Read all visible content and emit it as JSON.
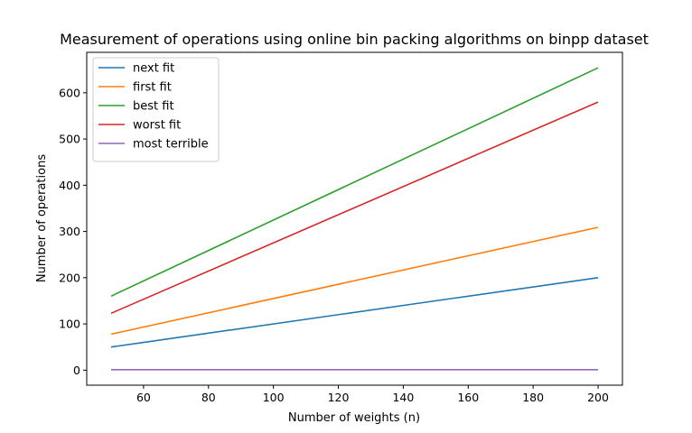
{
  "chart_data": {
    "type": "line",
    "title": "Measurement of operations using online bin packing algorithms on binpp dataset",
    "xlabel": "Number of weights (n)",
    "ylabel": "Number of operations",
    "xlim": [
      42.5,
      207.5
    ],
    "ylim": [
      -32.5,
      687.5
    ],
    "xticks": [
      60,
      80,
      100,
      120,
      140,
      160,
      180,
      200
    ],
    "yticks": [
      0,
      100,
      200,
      300,
      400,
      500,
      600
    ],
    "x": [
      50,
      200
    ],
    "series": [
      {
        "name": "next fit",
        "color": "#1f77b4",
        "values": [
          50,
          200
        ]
      },
      {
        "name": "first fit",
        "color": "#ff7f0e",
        "values": [
          78,
          309
        ]
      },
      {
        "name": "best fit",
        "color": "#2ca02c",
        "values": [
          160,
          654
        ]
      },
      {
        "name": "worst fit",
        "color": "#d62728",
        "values": [
          123,
          580
        ]
      },
      {
        "name": "most terrible",
        "color": "#9467bd",
        "values": [
          1,
          1
        ]
      }
    ],
    "legend": "top-left",
    "grid": false
  }
}
